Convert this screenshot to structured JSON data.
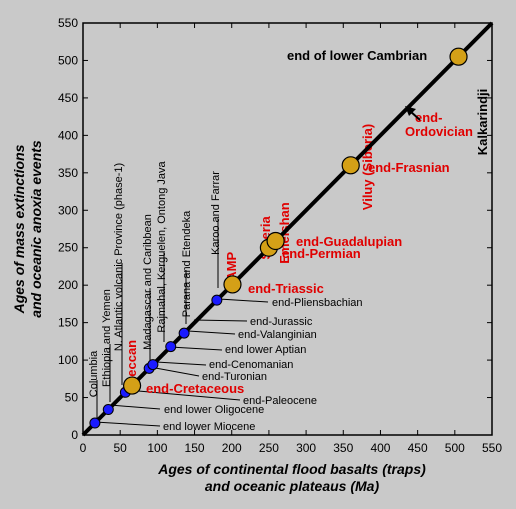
{
  "chart_data": {
    "type": "scatter",
    "xlabel_line1": "Ages of continental flood basalts (traps)",
    "xlabel_line2": "and oceanic plateaus (Ma)",
    "ylabel_line1": "Ages of mass extinctions",
    "ylabel_line2": "and oceanic anoxia events",
    "xlim": [
      0,
      550
    ],
    "ylim": [
      0,
      550
    ],
    "x_ticks": [
      "0",
      "50",
      "100",
      "150",
      "200",
      "250",
      "300",
      "350",
      "400",
      "450",
      "500",
      "550"
    ],
    "y_ticks": [
      "0",
      "50",
      "100",
      "150",
      "200",
      "250",
      "300",
      "350",
      "400",
      "450",
      "500",
      "550"
    ],
    "grid": false,
    "reference_line": "y = x",
    "colors": {
      "background": "#c9c9c9",
      "small_marker": "#1a1aff",
      "large_marker": "#d4a017",
      "red_label": "#e00000",
      "line": "#000000"
    },
    "trap_labels": [
      {
        "text": "Columbia",
        "x": 16
      },
      {
        "text": "Ethiopia and Yemen",
        "x": 30
      },
      {
        "text": "N. Atlantic volcanic Province (phase-1)",
        "x": 56
      },
      {
        "text": "Deccan",
        "x": 66,
        "style": "red"
      },
      {
        "text": "Madagascar and Caribbean",
        "x": 91
      },
      {
        "text": "Rajmahal, Kerguelen, Ontong Java",
        "x": 119
      },
      {
        "text": "Parana and Etendeka",
        "x": 135
      },
      {
        "text": "Karoo and Farrar",
        "x": 183
      },
      {
        "text": "CAMP",
        "x": 200,
        "style": "red"
      },
      {
        "text": "Siberia",
        "x": 250,
        "style": "red"
      },
      {
        "text": "Emeishan",
        "x": 260,
        "style": "red"
      },
      {
        "text": "Viluy (Siberia)",
        "x": 360,
        "style": "red"
      },
      {
        "text": "Kalkarindji",
        "x": 510,
        "style": "black"
      }
    ],
    "event_labels": [
      {
        "text": "end lower Miocene",
        "y": 16
      },
      {
        "text": "end lower Oligocene",
        "y": 34
      },
      {
        "text": "end-Paleocene",
        "y": 57
      },
      {
        "text": "end-Cretaceous",
        "y": 66,
        "style": "red"
      },
      {
        "text": "end-Turonian",
        "y": 90
      },
      {
        "text": "end-Cenomanian",
        "y": 94
      },
      {
        "text": "end lower Aptian",
        "y": 118
      },
      {
        "text": "end-Valanginian",
        "y": 134
      },
      {
        "text": "end-Jurassic",
        "y": 145
      },
      {
        "text": "end-Pliensbachian",
        "y": 183
      },
      {
        "text": "end-Triassic",
        "y": 201,
        "style": "red"
      },
      {
        "text": "end-Permian",
        "y": 250,
        "style": "red"
      },
      {
        "text": "end-Guadalupian",
        "y": 260,
        "style": "red"
      },
      {
        "text": "end-Frasnian",
        "y": 360,
        "style": "red"
      },
      {
        "text": "end-",
        "y": 420,
        "style": "red"
      },
      {
        "text": "Ordovician",
        "y": 420,
        "style": "red"
      },
      {
        "text": "end of lower Cambrian",
        "y": 505,
        "style": "black"
      }
    ],
    "series": [
      {
        "marker": "small",
        "points": [
          [
            16,
            16
          ],
          [
            34,
            34
          ],
          [
            57,
            57
          ],
          [
            89,
            89
          ],
          [
            94,
            94
          ],
          [
            118,
            118
          ],
          [
            136,
            136
          ],
          [
            180,
            180
          ]
        ]
      },
      {
        "marker": "large",
        "points": [
          [
            66,
            66
          ],
          [
            201,
            201
          ],
          [
            250,
            250
          ],
          [
            259,
            259
          ],
          [
            360,
            360
          ],
          [
            505,
            505
          ]
        ]
      }
    ]
  }
}
